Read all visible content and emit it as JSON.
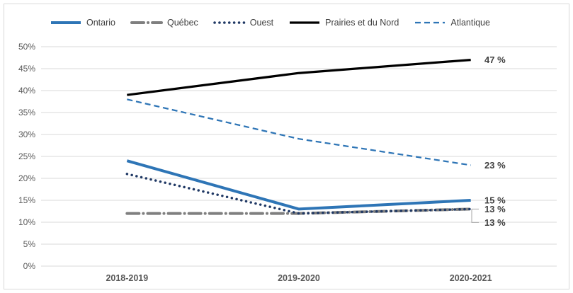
{
  "chart_data": {
    "type": "line",
    "title": "",
    "categories": [
      "2018-2019",
      "2019-2020",
      "2020-2021"
    ],
    "series": [
      {
        "name": "Ontario",
        "values": [
          24,
          13,
          15
        ],
        "end_label": "15 %",
        "color": "#2E75B6",
        "style": "solid",
        "width": 4
      },
      {
        "name": "Québec",
        "values": [
          12,
          12,
          13
        ],
        "end_label": "13 %",
        "color": "#7F7F7F",
        "style": "long-dash-dot",
        "width": 4
      },
      {
        "name": "Ouest",
        "values": [
          21,
          12,
          13
        ],
        "end_label": "13 %",
        "color": "#1F3864",
        "style": "dotted",
        "width": 3.5
      },
      {
        "name": "Prairies et du Nord",
        "values": [
          39,
          44,
          47
        ],
        "end_label": "47 %",
        "color": "#000000",
        "style": "solid",
        "width": 3.25
      },
      {
        "name": "Atlantique",
        "values": [
          38,
          29,
          23
        ],
        "end_label": "23 %",
        "color": "#2E75B6",
        "style": "dashed",
        "width": 2.25
      }
    ],
    "xlabel": "",
    "ylabel": "",
    "ylim": [
      0,
      50
    ],
    "y_ticks": [
      "0%",
      "5%",
      "10%",
      "15%",
      "20%",
      "25%",
      "30%",
      "35%",
      "40%",
      "45%",
      "50%"
    ],
    "grid": true,
    "legend_position": "top",
    "unit": "%"
  },
  "colors": {
    "gridline": "#D9D9D9",
    "border": "#D9D9D9",
    "leader": "#A6A6A6",
    "axis_text": "#595959",
    "label_text": "#404040"
  }
}
